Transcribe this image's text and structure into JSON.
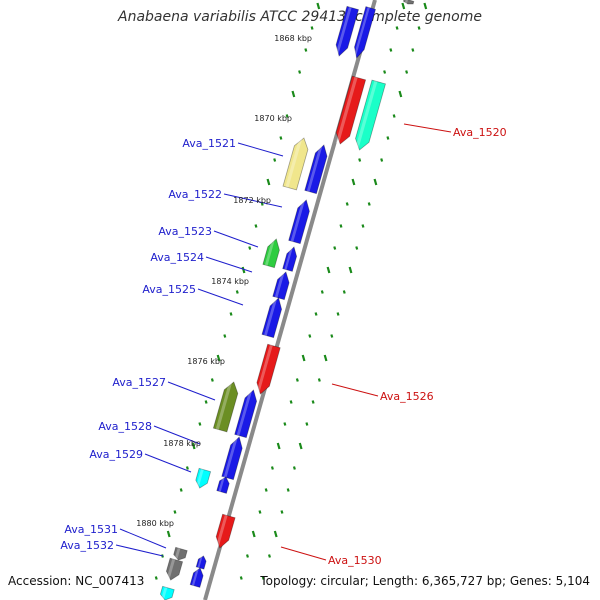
{
  "title": "Anabaena variabilis ATCC 29413, complete genome",
  "footer": {
    "accession": "Accession: NC_007413",
    "topology": "Topology: circular; Length: 6,365,727 bp; Genes: 5,104"
  },
  "colors": {
    "backbone": "#8a8a8a",
    "tick": "#1a8a1a",
    "gene_blue": "#1a1ae6",
    "gene_red": "#e61a1a",
    "gene_green": "#2ecc40",
    "gene_olive": "#6b8e23",
    "gene_khaki": "#f0e68c",
    "gene_aqua": "#1affc8",
    "gene_cyan": "#00ffff",
    "gene_grey": "#707070",
    "label_blue": "#1e1ecc",
    "label_red": "#cc1111"
  },
  "kbp_marks": [
    "1868 kbp",
    "1870 kbp",
    "1872 kbp",
    "1874 kbp",
    "1876 kbp",
    "1878 kbp",
    "1880 kbp"
  ],
  "gene_labels_left": [
    "Ava_1521",
    "Ava_1522",
    "Ava_1523",
    "Ava_1524",
    "Ava_1525",
    "Ava_1527",
    "Ava_1528",
    "Ava_1529",
    "Ava_1531",
    "Ava_1532"
  ],
  "gene_labels_right": [
    "Ava_1520",
    "Ava_1526",
    "Ava_1530"
  ]
}
